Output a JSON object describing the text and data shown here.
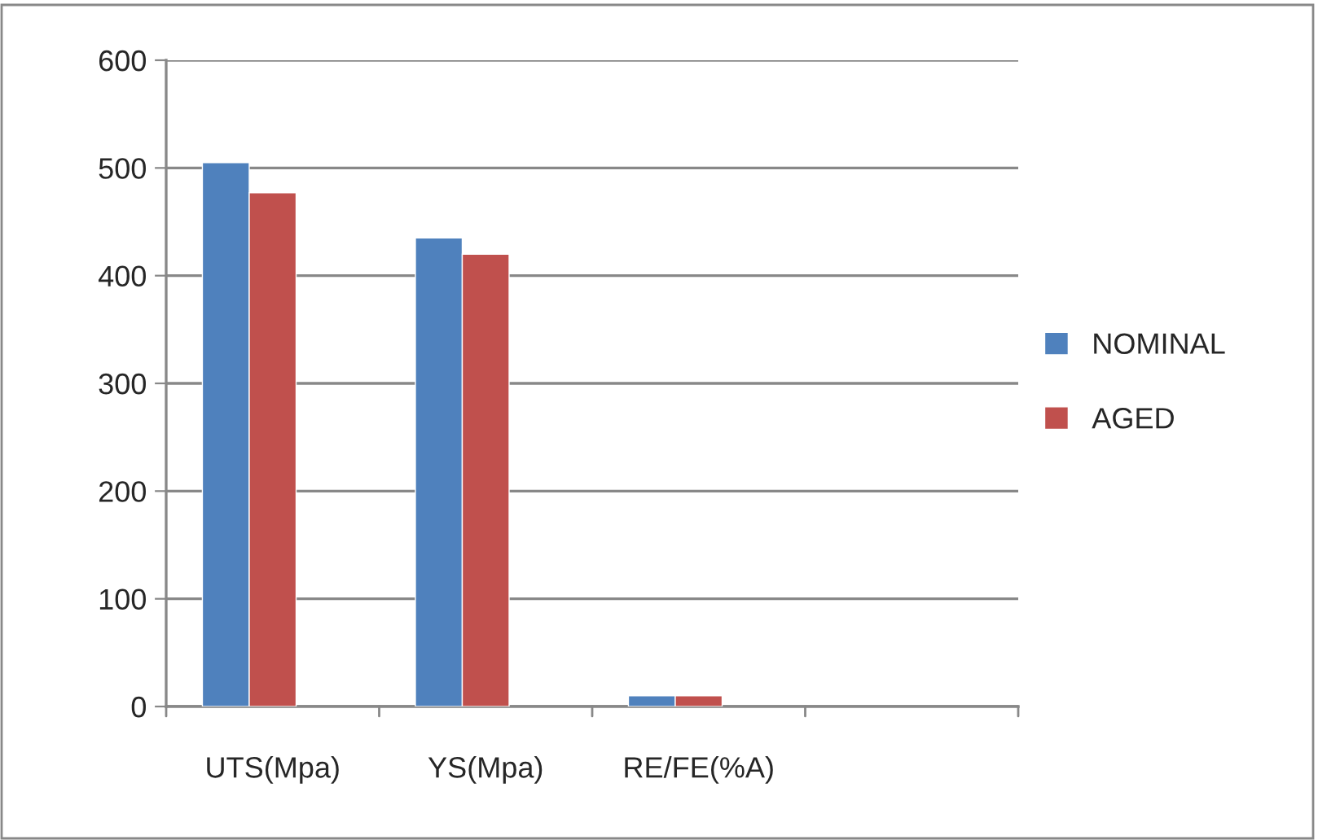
{
  "chart_data": {
    "type": "bar",
    "categories": [
      "UTS(Mpa)",
      "YS(Mpa)",
      "RE/FE(%A)",
      null
    ],
    "series": [
      {
        "name": "NOMINAL",
        "color": "#4f81bd",
        "values": [
          505,
          435,
          10,
          null
        ]
      },
      {
        "name": "AGED",
        "color": "#c0504d",
        "values": [
          477,
          420,
          10,
          null
        ]
      }
    ],
    "ylim": [
      0,
      600
    ],
    "yticks": [
      0,
      100,
      200,
      300,
      400,
      500,
      600
    ],
    "grid": "y",
    "legend": "right"
  }
}
